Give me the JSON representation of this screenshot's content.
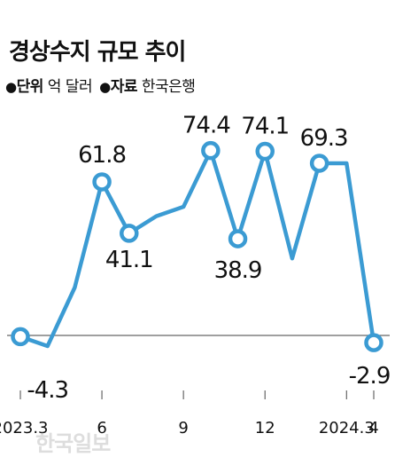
{
  "header": {
    "title": "경상수지 규모 추이",
    "unit_key": "단위",
    "unit_value": "억 달러",
    "source_key": "자료",
    "source_value": "한국은행",
    "bullet": "●"
  },
  "watermark": "한국일보",
  "colors": {
    "line": "#3b9bd3",
    "marker_fill": "#ffffff",
    "axis": "#666666",
    "text": "#111111"
  },
  "chart_data": {
    "type": "line",
    "title": "경상수지 규모 추이",
    "x": [
      "2023.3",
      "2023.4",
      "2023.5",
      "2023.6",
      "2023.7",
      "2023.8",
      "2023.9",
      "2023.10",
      "2023.11",
      "2023.12",
      "2024.1",
      "2024.2",
      "2024.3",
      "2024.4"
    ],
    "series": [
      {
        "values": [
          -0.5,
          -4.3,
          19.3,
          61.8,
          41.1,
          48.0,
          51.8,
          74.4,
          38.9,
          74.1,
          31.0,
          69.3,
          69.3,
          -2.9
        ]
      }
    ],
    "data_labels": [
      {
        "index": 1,
        "text": "-4.3"
      },
      {
        "index": 3,
        "text": "61.8"
      },
      {
        "index": 4,
        "text": "41.1"
      },
      {
        "index": 7,
        "text": "74.4"
      },
      {
        "index": 8,
        "text": "38.9"
      },
      {
        "index": 9,
        "text": "74.1"
      },
      {
        "index": 11,
        "text": "69.3"
      },
      {
        "index": 13,
        "text": "-2.9"
      }
    ],
    "markers": [
      0,
      3,
      4,
      7,
      8,
      9,
      11,
      13
    ],
    "ticks": [
      {
        "index": 0,
        "label": "2023.3"
      },
      {
        "index": 3,
        "label": "6"
      },
      {
        "index": 6,
        "label": "9"
      },
      {
        "index": 9,
        "label": "12"
      },
      {
        "index": 12,
        "label": "2024.3"
      },
      {
        "index": 13,
        "label": "4"
      }
    ],
    "ylim": [
      -10,
      80
    ],
    "grid": false
  }
}
